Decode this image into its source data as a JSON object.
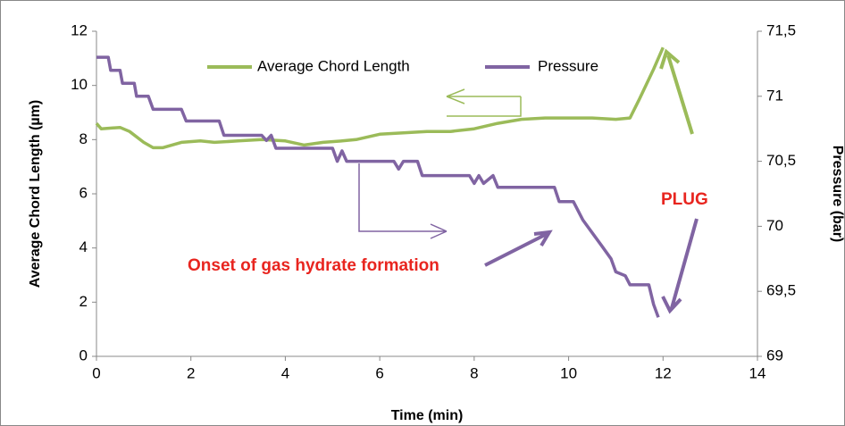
{
  "chart_data": {
    "type": "line",
    "x_label": "Time (min)",
    "y_label": "Average Chord Length (µm)",
    "y2_label": "Pressure (bar)",
    "xlim": [
      0,
      14
    ],
    "xticks": [
      0,
      2,
      4,
      6,
      8,
      10,
      12,
      14
    ],
    "ylim": [
      0,
      12
    ],
    "yticks": [
      0,
      2,
      4,
      6,
      8,
      10,
      12
    ],
    "y2lim": [
      69,
      71.5
    ],
    "y2ticks": [
      69,
      {
        "value": 69.5,
        "label": "69,5"
      },
      70,
      {
        "value": 70.5,
        "label": "70,5"
      },
      71,
      {
        "value": 71.5,
        "label": "71,5"
      }
    ],
    "legend": "top",
    "annotations": [
      "Onset of gas hydrate formation",
      "PLUG"
    ],
    "series": [
      {
        "name": "Average Chord Length",
        "color": "#9bbb59",
        "x": [
          0,
          0.1,
          0.5,
          0.7,
          1.0,
          1.2,
          1.4,
          1.8,
          2.2,
          2.5,
          3,
          3.5,
          4,
          4.4,
          4.8,
          5.2,
          5.5,
          6,
          6.5,
          7,
          7.5,
          8,
          8.5,
          9,
          9.5,
          10,
          10.5,
          11,
          11.3,
          11.5,
          11.8,
          12
        ],
        "values": [
          8.6,
          8.4,
          8.45,
          8.3,
          7.9,
          7.7,
          7.7,
          7.9,
          7.95,
          7.9,
          7.95,
          8.0,
          7.95,
          7.8,
          7.9,
          7.95,
          8.0,
          8.2,
          8.25,
          8.3,
          8.3,
          8.4,
          8.6,
          8.75,
          8.8,
          8.8,
          8.8,
          8.75,
          8.8,
          9.5,
          10.6,
          11.4
        ]
      },
      {
        "name": "Pressure",
        "color": "#8064a2",
        "axis": "y2",
        "x": [
          0,
          0.25,
          0.3,
          0.5,
          0.55,
          0.8,
          0.85,
          1.1,
          1.2,
          1.8,
          1.9,
          2.6,
          2.7,
          3.5,
          3.6,
          3.7,
          3.8,
          5.0,
          5.1,
          5.2,
          5.3,
          6.3,
          6.4,
          6.5,
          6.8,
          6.9,
          7.9,
          8.0,
          8.1,
          8.2,
          8.4,
          8.5,
          9.7,
          9.8,
          10.1,
          10.3,
          10.5,
          10.7,
          10.9,
          11.0,
          11.2,
          11.3,
          11.7,
          11.8,
          11.9
        ],
        "values": [
          71.3,
          71.3,
          71.2,
          71.2,
          71.1,
          71.1,
          71.0,
          71.0,
          70.9,
          70.9,
          70.81,
          70.81,
          70.7,
          70.7,
          70.66,
          70.7,
          70.6,
          70.6,
          70.5,
          70.58,
          70.5,
          70.5,
          70.44,
          70.5,
          70.5,
          70.39,
          70.39,
          70.33,
          70.39,
          70.33,
          70.39,
          70.3,
          70.3,
          70.19,
          70.19,
          70.05,
          69.95,
          69.85,
          69.75,
          69.65,
          69.62,
          69.55,
          69.55,
          69.4,
          69.3
        ]
      }
    ]
  }
}
